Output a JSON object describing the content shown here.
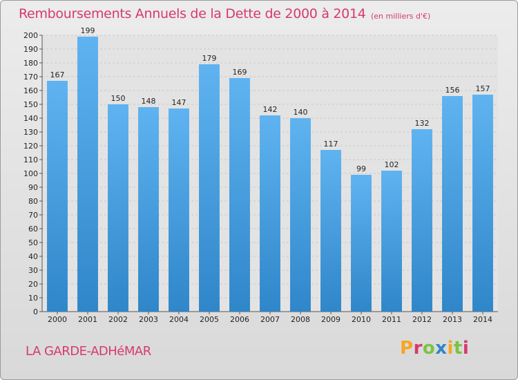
{
  "header": {
    "title": "Remboursements Annuels de la Dette de 2000 à 2014",
    "unit": "(en milliers d'€)"
  },
  "footer": {
    "commune": "LA GARDE-ADHéMAR",
    "logo_text": "Proxiti"
  },
  "colors": {
    "bar_top": "#5fb3f0",
    "bar_bottom": "#2f86c9",
    "title": "#d63a6a",
    "logo": [
      "#f5a623",
      "#d63a6a",
      "#7cc242",
      "#2f86c9",
      "#f5a623",
      "#7cc242",
      "#d63a6a"
    ]
  },
  "chart_data": {
    "type": "bar",
    "categories": [
      "2000",
      "2001",
      "2002",
      "2003",
      "2004",
      "2005",
      "2006",
      "2007",
      "2008",
      "2009",
      "2010",
      "2011",
      "2012",
      "2013",
      "2014"
    ],
    "values": [
      167,
      199,
      150,
      148,
      147,
      179,
      169,
      142,
      140,
      117,
      99,
      102,
      132,
      156,
      157
    ],
    "title": "Remboursements Annuels de la Dette de 2000 à 2014",
    "xlabel": "",
    "ylabel": "",
    "ylim": [
      0,
      200
    ],
    "yticks": [
      0,
      10,
      20,
      30,
      40,
      50,
      60,
      70,
      80,
      90,
      100,
      110,
      120,
      130,
      140,
      150,
      160,
      170,
      180,
      190,
      200
    ],
    "grid": true,
    "data_labels": true
  }
}
